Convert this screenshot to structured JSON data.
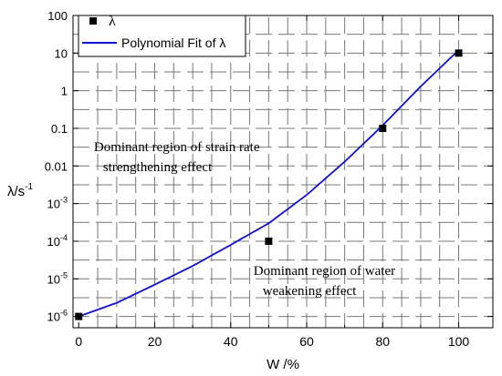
{
  "chart_data": {
    "type": "scatter",
    "xlabel": "W /%",
    "ylabel_main": "λ/s",
    "ylabel_sup": "-1",
    "x_ticks": [
      0,
      20,
      40,
      60,
      80,
      100
    ],
    "x_tick_labels": [
      "0",
      "20",
      "40",
      "60",
      "80",
      "100"
    ],
    "xlim": [
      -1.5,
      109
    ],
    "y_scale": "log",
    "ylim_exp": [
      -6.3,
      2
    ],
    "y_ticks": [
      {
        "exp": 2,
        "label": "100"
      },
      {
        "exp": 1,
        "label": "10"
      },
      {
        "exp": 0,
        "label": "1"
      },
      {
        "exp": -1,
        "label": "0.1"
      },
      {
        "exp": -2,
        "label": "0.01"
      },
      {
        "exp": -3,
        "base": "10",
        "sup": "-3"
      },
      {
        "exp": -4,
        "base": "10",
        "sup": "-4"
      },
      {
        "exp": -5,
        "base": "10",
        "sup": "-5"
      },
      {
        "exp": -6,
        "base": "10",
        "sup": "-6"
      }
    ],
    "series": [
      {
        "name": "λ",
        "kind": "points",
        "color": "#000000",
        "x": [
          0,
          50,
          80,
          100
        ],
        "y": [
          1e-06,
          0.0001,
          0.1,
          10
        ]
      },
      {
        "name": "Polynomial Fit of λ",
        "kind": "line",
        "color": "#1010d0",
        "x": [
          0,
          10,
          20,
          30,
          40,
          50,
          60,
          70,
          80,
          90,
          100
        ],
        "y": [
          1e-06,
          2.3e-06,
          7e-06,
          2.2e-05,
          8e-05,
          0.0003,
          0.0017,
          0.013,
          0.12,
          1.3,
          12
        ]
      }
    ],
    "legend_position": "top-left",
    "grid": "dashed",
    "annotations": [
      {
        "lines": [
          "Dominant region of strain rate",
          "strengthening effect"
        ],
        "x": 4,
        "y_exp": -1.6
      },
      {
        "lines": [
          "Dominant region of water",
          "weakening effect"
        ],
        "x": 46,
        "y_exp": -4.9
      }
    ]
  }
}
